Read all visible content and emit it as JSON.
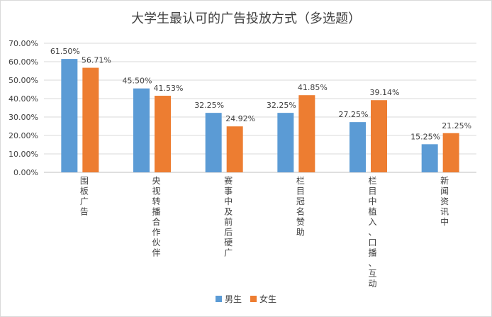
{
  "chart_data": {
    "type": "bar",
    "title": "大学生最认可的广告投放方式（多选题）",
    "categories": [
      "围板广告",
      "央视转播合作伙伴",
      "赛事中及前后硬广",
      "栏目冠名赞助",
      "栏目中植入、口播、互动",
      "新闻资讯中"
    ],
    "series": [
      {
        "name": "男生",
        "color": "#5b9bd5",
        "values": [
          61.5,
          45.5,
          32.25,
          32.25,
          27.25,
          15.25
        ],
        "labels": [
          "61.50%",
          "45.50%",
          "32.25%",
          "32.25%",
          "27.25%",
          "15.25%"
        ]
      },
      {
        "name": "女生",
        "color": "#ed7d31",
        "values": [
          56.71,
          41.53,
          24.92,
          41.85,
          39.14,
          21.25
        ],
        "labels": [
          "56.71%",
          "41.53%",
          "24.92%",
          "41.85%",
          "39.14%",
          "21.25%"
        ]
      }
    ],
    "ylim": [
      0,
      70
    ],
    "yticks": [
      "0.00%",
      "10.00%",
      "20.00%",
      "30.00%",
      "40.00%",
      "50.00%",
      "60.00%",
      "70.00%"
    ],
    "grid": true,
    "legend": "bottom"
  }
}
